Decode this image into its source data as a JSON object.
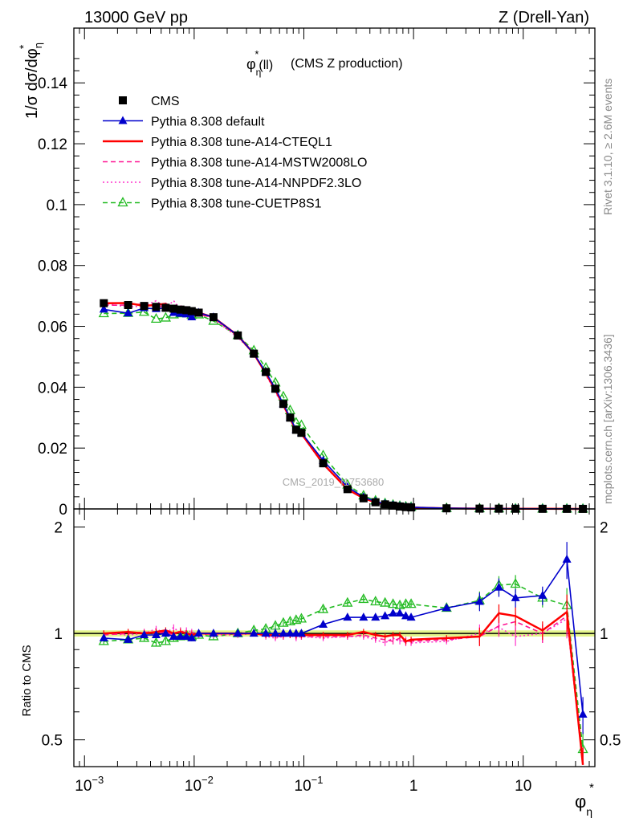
{
  "header": {
    "left": "13000 GeV pp",
    "right": "Z (Drell-Yan)"
  },
  "plot_title": "(CMS Z production)",
  "watermark": "CMS_2019_I1753680",
  "side_labels": {
    "rivet": "Rivet 3.1.10, ≥ 2.6M events",
    "mcplots": "mcplots.cern.ch [arXiv:1306.3436]"
  },
  "legend": [
    {
      "label": "CMS",
      "color": "#000000",
      "dash": "none",
      "marker": "square-filled"
    },
    {
      "label": "Pythia 8.308 default",
      "color": "#0000cc",
      "dash": "solid",
      "marker": "triangle-filled"
    },
    {
      "label": "Pythia 8.308 tune-A14-CTEQL1",
      "color": "#ff0000",
      "dash": "solid",
      "marker": "none"
    },
    {
      "label": "Pythia 8.308 tune-A14-MSTW2008LO",
      "color": "#ff1493",
      "dash": "dashed",
      "marker": "none"
    },
    {
      "label": "Pythia 8.308 tune-A14-NNPDF2.3LO",
      "color": "#ff33cc",
      "dash": "dotted",
      "marker": "none"
    },
    {
      "label": "Pythia 8.308 tune-CUETP8S1",
      "color": "#22bb22",
      "dash": "dashed",
      "marker": "triangle-open"
    }
  ],
  "chart_data": {
    "type": "line",
    "x": [
      0.0015,
      0.0025,
      0.0035,
      0.0045,
      0.0055,
      0.0065,
      0.0075,
      0.0085,
      0.0095,
      0.011,
      0.015,
      0.025,
      0.035,
      0.045,
      0.055,
      0.065,
      0.075,
      0.085,
      0.095,
      0.15,
      0.25,
      0.35,
      0.45,
      0.55,
      0.65,
      0.75,
      0.85,
      0.95,
      2.0,
      4.0,
      6.0,
      8.5,
      15.0,
      25.0,
      35.0
    ],
    "series": [
      {
        "name": "CMS",
        "values": [
          0.0676,
          0.067,
          0.0667,
          0.0664,
          0.0661,
          0.0658,
          0.0655,
          0.0653,
          0.065,
          0.0645,
          0.063,
          0.057,
          0.051,
          0.045,
          0.0395,
          0.0345,
          0.03,
          0.026,
          0.025,
          0.015,
          0.0065,
          0.0035,
          0.0022,
          0.0015,
          0.0011,
          0.0008,
          0.0006,
          0.0005,
          0.0002,
          0.0001,
          8e-05,
          6e-05,
          4e-05,
          3e-05,
          2e-05
        ]
      },
      {
        "name": "Pythia 8.308 default",
        "ratio": [
          0.97,
          0.96,
          0.99,
          0.99,
          1.0,
          0.98,
          0.98,
          0.98,
          0.97,
          1.0,
          1.0,
          1.0,
          1.0,
          1.0,
          1.0,
          1.0,
          1.0,
          1.0,
          1.0,
          1.06,
          1.11,
          1.11,
          1.11,
          1.12,
          1.14,
          1.14,
          1.12,
          1.11,
          1.18,
          1.23,
          1.35,
          1.26,
          1.28,
          1.62,
          0.59
        ]
      },
      {
        "name": "Pythia 8.308 tune-A14-CTEQL1",
        "ratio": [
          1.0,
          1.01,
          1.0,
          1.01,
          1.02,
          1.0,
          1.01,
          1.0,
          0.99,
          1.0,
          1.0,
          1.0,
          1.0,
          0.99,
          0.99,
          0.99,
          0.99,
          0.99,
          0.99,
          0.99,
          0.99,
          1.01,
          0.99,
          0.98,
          0.99,
          0.99,
          0.95,
          0.96,
          0.97,
          0.98,
          1.14,
          1.12,
          1.02,
          1.15,
          0.4
        ]
      },
      {
        "name": "Pythia 8.308 tune-A14-MSTW2008LO",
        "ratio": [
          0.99,
          1.0,
          1.01,
          1.0,
          1.01,
          0.99,
          1.02,
          1.0,
          1.0,
          0.99,
          1.0,
          1.0,
          1.0,
          0.99,
          0.98,
          0.98,
          0.99,
          0.98,
          0.98,
          0.98,
          0.98,
          0.99,
          0.97,
          0.96,
          0.95,
          0.97,
          0.94,
          0.95,
          0.96,
          0.98,
          1.05,
          1.08,
          1.0,
          1.12,
          0.36
        ]
      },
      {
        "name": "Pythia 8.308 tune-A14-NNPDF2.3LO",
        "ratio": [
          1.0,
          0.99,
          1.0,
          1.03,
          1.0,
          1.04,
          1.0,
          1.02,
          1.01,
          1.0,
          0.99,
          0.99,
          1.0,
          0.98,
          0.97,
          0.98,
          0.99,
          0.97,
          0.98,
          0.97,
          0.98,
          0.98,
          0.96,
          0.94,
          0.97,
          0.95,
          0.96,
          0.94,
          0.95,
          1.0,
          1.04,
          0.98,
          1.0,
          1.1,
          0.38
        ]
      },
      {
        "name": "Pythia 8.308 tune-CUETP8S1",
        "ratio": [
          0.95,
          0.96,
          0.97,
          0.94,
          0.95,
          0.97,
          0.98,
          0.99,
          0.98,
          0.99,
          0.98,
          1.0,
          1.02,
          1.03,
          1.05,
          1.07,
          1.08,
          1.09,
          1.1,
          1.17,
          1.22,
          1.25,
          1.23,
          1.22,
          1.21,
          1.2,
          1.21,
          1.21,
          1.18,
          1.24,
          1.37,
          1.38,
          1.26,
          1.2,
          0.47
        ]
      }
    ],
    "xlabel": "φ*η",
    "ylabel": "1/σ dσ/dφ*η",
    "ratio_ylabel": "Ratio to CMS",
    "xscale": "log",
    "xlim": [
      0.0008,
      45
    ],
    "ylim": [
      0,
      0.158
    ],
    "ratio_ylim": [
      0.42,
      2.25
    ],
    "xticks": [
      {
        "value": 0.001,
        "base": "10",
        "exp": "−3"
      },
      {
        "value": 0.01,
        "base": "10",
        "exp": "−2"
      },
      {
        "value": 0.1,
        "base": "10",
        "exp": "−1"
      },
      {
        "value": 1,
        "base": "1",
        "exp": ""
      },
      {
        "value": 10,
        "base": "10",
        "exp": ""
      }
    ],
    "yticks": [
      "0",
      "0.02",
      "0.04",
      "0.06",
      "0.08",
      "0.1",
      "0.12",
      "0.14"
    ],
    "ratio_yticks": [
      "0.5",
      "1",
      "2"
    ],
    "grid": false,
    "legend_position": "top-left"
  }
}
